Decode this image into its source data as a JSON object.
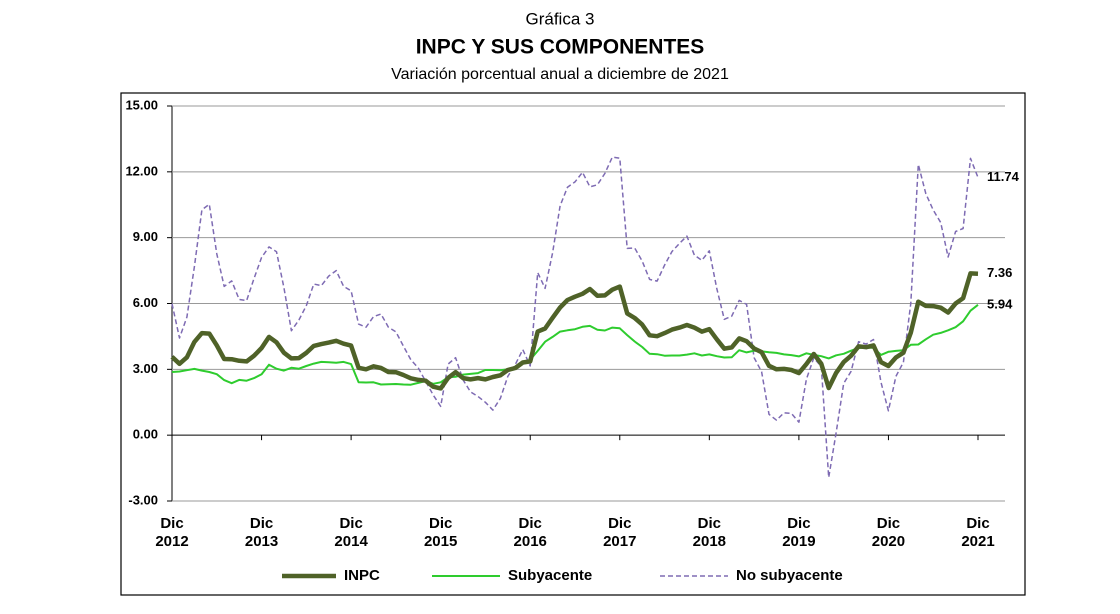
{
  "chart_data": {
    "type": "line",
    "label": "Gráfica 3",
    "title": "INPC Y SUS COMPONENTES",
    "subtitle": "Variación porcentual anual a diciembre de 2021",
    "categories": [
      "Dic 2012",
      null,
      null,
      null,
      null,
      null,
      null,
      null,
      null,
      null,
      null,
      null,
      "Dic 2013",
      null,
      null,
      null,
      null,
      null,
      null,
      null,
      null,
      null,
      null,
      null,
      "Dic 2014",
      null,
      null,
      null,
      null,
      null,
      null,
      null,
      null,
      null,
      null,
      null,
      "Dic 2015",
      null,
      null,
      null,
      null,
      null,
      null,
      null,
      null,
      null,
      null,
      null,
      "Dic 2016",
      null,
      null,
      null,
      null,
      null,
      null,
      null,
      null,
      null,
      null,
      null,
      "Dic 2017",
      null,
      null,
      null,
      null,
      null,
      null,
      null,
      null,
      null,
      null,
      null,
      "Dic 2018",
      null,
      null,
      null,
      null,
      null,
      null,
      null,
      null,
      null,
      null,
      null,
      "Dic 2019",
      null,
      null,
      null,
      null,
      null,
      null,
      null,
      null,
      null,
      null,
      null,
      "Dic 2020",
      null,
      null,
      null,
      null,
      null,
      null,
      null,
      null,
      null,
      null,
      null,
      "Dic 2021"
    ],
    "series": [
      {
        "name": "INPC",
        "color": "#4f6228",
        "line_width": 4.5,
        "line_style": "solid",
        "values": [
          3.57,
          3.25,
          3.55,
          4.25,
          4.65,
          4.63,
          4.09,
          3.47,
          3.46,
          3.39,
          3.36,
          3.62,
          3.97,
          4.48,
          4.23,
          3.76,
          3.5,
          3.51,
          3.75,
          4.07,
          4.15,
          4.22,
          4.3,
          4.17,
          4.08,
          3.07,
          3.0,
          3.14,
          3.06,
          2.88,
          2.87,
          2.74,
          2.59,
          2.52,
          2.48,
          2.21,
          2.13,
          2.61,
          2.87,
          2.6,
          2.54,
          2.6,
          2.54,
          2.65,
          2.73,
          2.97,
          3.06,
          3.31,
          3.36,
          4.72,
          4.86,
          5.35,
          5.82,
          6.16,
          6.31,
          6.44,
          6.66,
          6.35,
          6.37,
          6.63,
          6.77,
          5.55,
          5.34,
          5.04,
          4.55,
          4.51,
          4.65,
          4.81,
          4.9,
          5.02,
          4.9,
          4.72,
          4.83,
          4.37,
          3.94,
          4.0,
          4.41,
          4.28,
          3.95,
          3.78,
          3.16,
          3.0,
          3.02,
          2.97,
          2.83,
          3.24,
          3.7,
          3.25,
          2.15,
          2.84,
          3.33,
          3.62,
          4.05,
          4.01,
          4.09,
          3.33,
          3.15,
          3.54,
          3.76,
          4.67,
          6.08,
          5.89,
          5.88,
          5.81,
          5.59,
          6.0,
          6.24,
          7.37,
          7.36
        ]
      },
      {
        "name": "Subyacente",
        "color": "#2ecc2e",
        "line_width": 2,
        "line_style": "solid",
        "values": [
          2.88,
          2.9,
          2.96,
          3.02,
          2.94,
          2.88,
          2.78,
          2.51,
          2.37,
          2.52,
          2.48,
          2.6,
          2.78,
          3.21,
          3.03,
          2.94,
          3.07,
          3.03,
          3.15,
          3.26,
          3.34,
          3.32,
          3.3,
          3.34,
          3.24,
          2.41,
          2.4,
          2.41,
          2.31,
          2.32,
          2.33,
          2.31,
          2.3,
          2.38,
          2.47,
          2.34,
          2.41,
          2.64,
          2.66,
          2.76,
          2.79,
          2.83,
          2.97,
          2.97,
          2.96,
          3.0,
          3.1,
          3.29,
          3.44,
          3.84,
          4.26,
          4.48,
          4.72,
          4.78,
          4.83,
          4.94,
          4.98,
          4.8,
          4.77,
          4.9,
          4.87,
          4.56,
          4.27,
          4.02,
          3.71,
          3.69,
          3.62,
          3.63,
          3.63,
          3.67,
          3.73,
          3.63,
          3.68,
          3.6,
          3.54,
          3.55,
          3.87,
          3.77,
          3.85,
          3.82,
          3.78,
          3.75,
          3.68,
          3.65,
          3.59,
          3.73,
          3.66,
          3.6,
          3.5,
          3.64,
          3.71,
          3.85,
          3.97,
          3.99,
          3.98,
          3.66,
          3.8,
          3.84,
          3.87,
          4.12,
          4.13,
          4.37,
          4.58,
          4.66,
          4.78,
          4.92,
          5.19,
          5.67,
          5.94
        ]
      },
      {
        "name": "No subyacente",
        "color": "#7e6bb3",
        "line_width": 1.5,
        "line_style": "dashed",
        "values": [
          5.99,
          4.43,
          5.38,
          7.68,
          10.27,
          10.52,
          8.26,
          6.78,
          7.03,
          6.18,
          6.13,
          7.15,
          8.1,
          8.58,
          8.36,
          6.73,
          4.76,
          5.25,
          5.9,
          6.89,
          6.81,
          7.25,
          7.5,
          6.78,
          6.58,
          5.06,
          4.92,
          5.4,
          5.52,
          4.92,
          4.71,
          4.06,
          3.44,
          3.06,
          2.45,
          1.83,
          1.31,
          3.24,
          3.53,
          2.52,
          1.97,
          1.76,
          1.5,
          1.14,
          1.68,
          2.68,
          3.22,
          3.9,
          3.15,
          7.41,
          6.69,
          8.31,
          10.45,
          11.3,
          11.54,
          11.98,
          11.32,
          11.41,
          11.93,
          12.67,
          12.62,
          8.51,
          8.53,
          7.93,
          7.1,
          7.02,
          7.75,
          8.37,
          8.74,
          9.07,
          8.2,
          7.97,
          8.4,
          6.68,
          5.28,
          5.42,
          6.14,
          5.96,
          3.53,
          2.89,
          0.95,
          0.68,
          1.02,
          0.99,
          0.59,
          2.55,
          3.52,
          3.13,
          -1.93,
          0.13,
          2.36,
          2.91,
          4.26,
          4.15,
          4.36,
          2.41,
          1.11,
          2.68,
          3.32,
          6.01,
          12.34,
          11.01,
          10.26,
          9.69,
          8.12,
          9.28,
          9.42,
          12.61,
          11.74
        ]
      }
    ],
    "ylim": [
      -3,
      15
    ],
    "yticks": [
      {
        "value": -3,
        "label": "-3.00"
      },
      {
        "value": 0,
        "label": "0.00"
      },
      {
        "value": 3,
        "label": "3.00"
      },
      {
        "value": 6,
        "label": "6.00"
      },
      {
        "value": 9,
        "label": "9.00"
      },
      {
        "value": 12,
        "label": "12.00"
      },
      {
        "value": 15,
        "label": "15.00"
      }
    ],
    "grid": true,
    "legend": "bottom"
  }
}
